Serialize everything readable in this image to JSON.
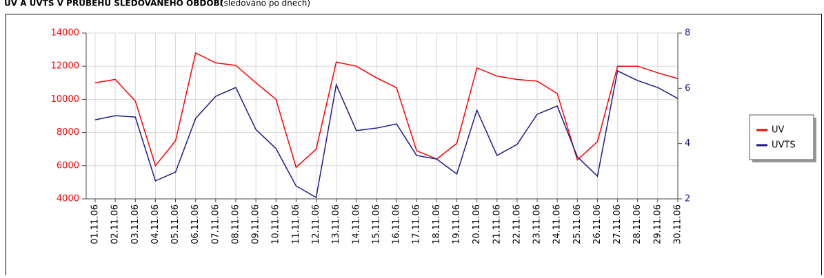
{
  "chart_data": {
    "type": "line",
    "title": "UV A UVTS V PRŮBĚHU SLEDOVANÉHO OBDOBÍ",
    "subtitle": "(sledováno po dnech)",
    "categories": [
      "01.11.06",
      "02.11.06",
      "03.11.06",
      "04.11.06",
      "05.11.06",
      "06.11.06",
      "07.11.06",
      "08.11.06",
      "09.11.06",
      "10.11.06",
      "11.11.06",
      "12.11.06",
      "13.11.06",
      "14.11.06",
      "15.11.06",
      "16.11.06",
      "17.11.06",
      "18.11.06",
      "19.11.06",
      "20.11.06",
      "21.11.06",
      "22.11.06",
      "23.11.06",
      "24.11.06",
      "25.11.06",
      "26.11.06",
      "27.11.06",
      "28.11.06",
      "29.11.06",
      "30.11.06"
    ],
    "series": [
      {
        "name": "UV",
        "color": "#ff0000",
        "values": [
          11000,
          11200,
          9900,
          6000,
          7500,
          12800,
          12200,
          12050,
          11000,
          10000,
          5900,
          7000,
          12250,
          12000,
          11300,
          10700,
          6900,
          6400,
          7350,
          11900,
          11400,
          11200,
          11100,
          10350,
          6350,
          7450,
          12000,
          12000,
          11600,
          11250
        ]
      },
      {
        "name": "UVTS",
        "color": "#1a1a8c",
        "axis": "y2",
        "values": [
          4.86,
          5.01,
          4.96,
          2.65,
          2.97,
          4.91,
          5.71,
          6.03,
          4.51,
          3.82,
          2.47,
          2.05,
          6.13,
          4.47,
          4.56,
          4.71,
          3.57,
          3.44,
          2.9,
          5.21,
          3.57,
          3.97,
          5.06,
          5.36,
          3.52,
          2.82,
          6.63,
          6.28,
          6.03,
          5.63
        ]
      }
    ],
    "ylim": [
      4000,
      14000
    ],
    "yticks": [
      4000,
      6000,
      8000,
      10000,
      12000,
      14000
    ],
    "y2lim": [
      2,
      8
    ],
    "y2ticks": [
      2,
      4,
      6,
      8
    ],
    "ycolor": "#ff0000",
    "y2color": "#1a1a8c",
    "grid": true,
    "legend": "right"
  }
}
